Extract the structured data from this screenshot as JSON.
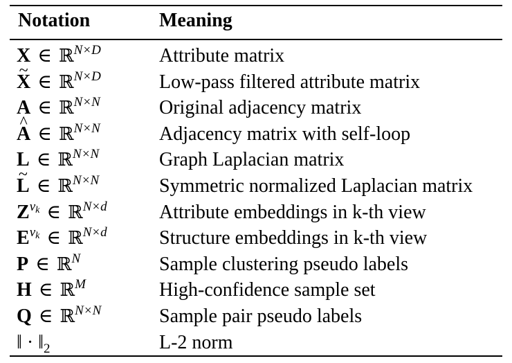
{
  "header": {
    "notation": "Notation",
    "meaning": "Meaning"
  },
  "rows": [
    {
      "notation": "X ∈ ℝ^{N×D}",
      "meaning": "Attribute matrix"
    },
    {
      "notation": "X̃ ∈ ℝ^{N×D}",
      "meaning": "Low-pass filtered attribute matrix"
    },
    {
      "notation": "A ∈ ℝ^{N×N}",
      "meaning": "Original adjacency matrix"
    },
    {
      "notation": "Â ∈ ℝ^{N×N}",
      "meaning": "Adjacency matrix with self-loop"
    },
    {
      "notation": "L ∈ ℝ^{N×N}",
      "meaning": "Graph Laplacian matrix"
    },
    {
      "notation": "L̃ ∈ ℝ^{N×N}",
      "meaning": "Symmetric normalized Laplacian matrix"
    },
    {
      "notation": "Z^{v_k} ∈ ℝ^{N×d}",
      "meaning": "Attribute embeddings in k-th view"
    },
    {
      "notation": "E^{v_k} ∈ ℝ^{N×d}",
      "meaning": "Structure embeddings in k-th view"
    },
    {
      "notation": "P ∈ ℝ^{N}",
      "meaning": "Sample clustering pseudo labels"
    },
    {
      "notation": "H ∈ ℝ^{M}",
      "meaning": "High-confidence sample set"
    },
    {
      "notation": "Q ∈ ℝ^{N×N}",
      "meaning": "Sample pair pseudo labels"
    },
    {
      "notation": "‖ · ‖₂",
      "meaning": "L-2 norm"
    }
  ]
}
